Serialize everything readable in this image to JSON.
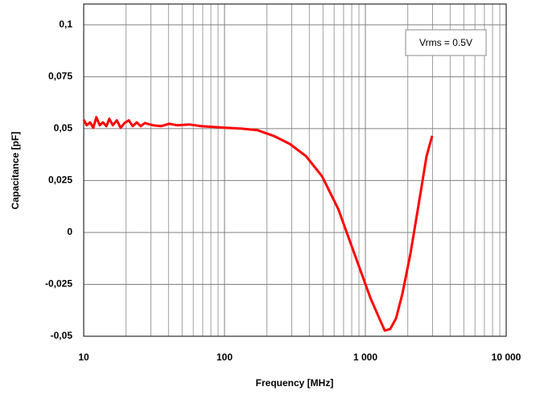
{
  "chart_data": {
    "type": "line",
    "x_label": "Frequency [MHz]",
    "y_label": "Capacitance [pF]",
    "annotation": "Vrms = 0.5V",
    "x_scale": "log",
    "xlim": [
      10,
      10000
    ],
    "xticks": [
      10,
      100,
      {
        "value": 1000,
        "label": "1 000"
      },
      {
        "value": 10000,
        "label": "10 000"
      }
    ],
    "ylim": [
      -0.05,
      0.11
    ],
    "yticks": [
      {
        "value": -0.05,
        "label": "-0,05"
      },
      {
        "value": -0.025,
        "label": "-0,025"
      },
      0,
      {
        "value": 0.025,
        "label": "0,025"
      },
      {
        "value": 0.05,
        "label": "0,05"
      },
      {
        "value": 0.075,
        "label": "0,075"
      },
      {
        "value": 0.1,
        "label": "0,1"
      }
    ],
    "grid": true,
    "x": [
      10,
      10.5,
      11.1,
      11.7,
      12.3,
      13,
      13.7,
      14.5,
      15.2,
      16.1,
      17.2,
      18.3,
      19.5,
      20.9,
      22.3,
      23.8,
      25.4,
      27.2,
      31,
      35.4,
      40.4,
      46.1,
      56.1,
      68.3,
      83.2,
      100,
      132,
      172,
      223,
      291,
      379,
      493,
      642,
      835,
      1087,
      1241,
      1373,
      1500,
      1650,
      1830,
      2090,
      2385,
      2720,
      2980
    ],
    "series": [
      {
        "color": "#ff0000",
        "values": [
          0.0543,
          0.0516,
          0.053,
          0.0504,
          0.0555,
          0.0516,
          0.053,
          0.0512,
          0.0547,
          0.0516,
          0.054,
          0.0504,
          0.0527,
          0.054,
          0.0512,
          0.053,
          0.0512,
          0.0527,
          0.0516,
          0.0512,
          0.0523,
          0.0516,
          0.052,
          0.0512,
          0.0508,
          0.0504,
          0.05,
          0.0492,
          0.0465,
          0.0426,
          0.0367,
          0.027,
          0.0113,
          -0.0102,
          -0.0316,
          -0.0406,
          -0.0473,
          -0.0465,
          -0.0414,
          -0.0297,
          -0.0102,
          0.0133,
          0.0367,
          0.0465
        ]
      }
    ]
  }
}
